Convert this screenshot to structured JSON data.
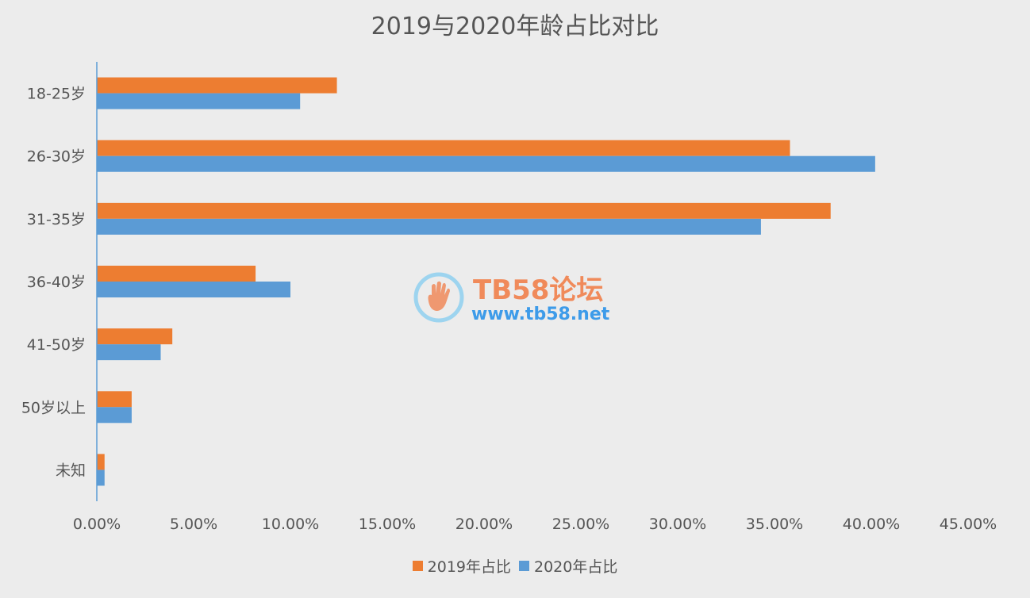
{
  "chart_data": {
    "type": "bar",
    "orientation": "horizontal",
    "title": "2019与2020年龄占比对比",
    "categories": [
      "18-25岁",
      "26-30岁",
      "31-35岁",
      "36-40岁",
      "41-50岁",
      "50岁以上",
      "未知"
    ],
    "series": [
      {
        "name": "2019年占比",
        "color": "#ed7d31",
        "values": [
          12.4,
          35.8,
          37.9,
          8.2,
          3.9,
          1.8,
          0.4
        ]
      },
      {
        "name": "2020年占比",
        "color": "#5b9bd5",
        "values": [
          10.5,
          40.2,
          34.3,
          10.0,
          3.3,
          1.8,
          0.4
        ]
      }
    ],
    "xlim": [
      0,
      45
    ],
    "xticks": [
      "0.00%",
      "5.00%",
      "10.00%",
      "15.00%",
      "20.00%",
      "25.00%",
      "30.00%",
      "35.00%",
      "40.00%",
      "45.00%"
    ],
    "grid": false,
    "legend_position": "bottom"
  },
  "watermark": {
    "name": "TB58论坛",
    "url": "www.tb58.net"
  }
}
